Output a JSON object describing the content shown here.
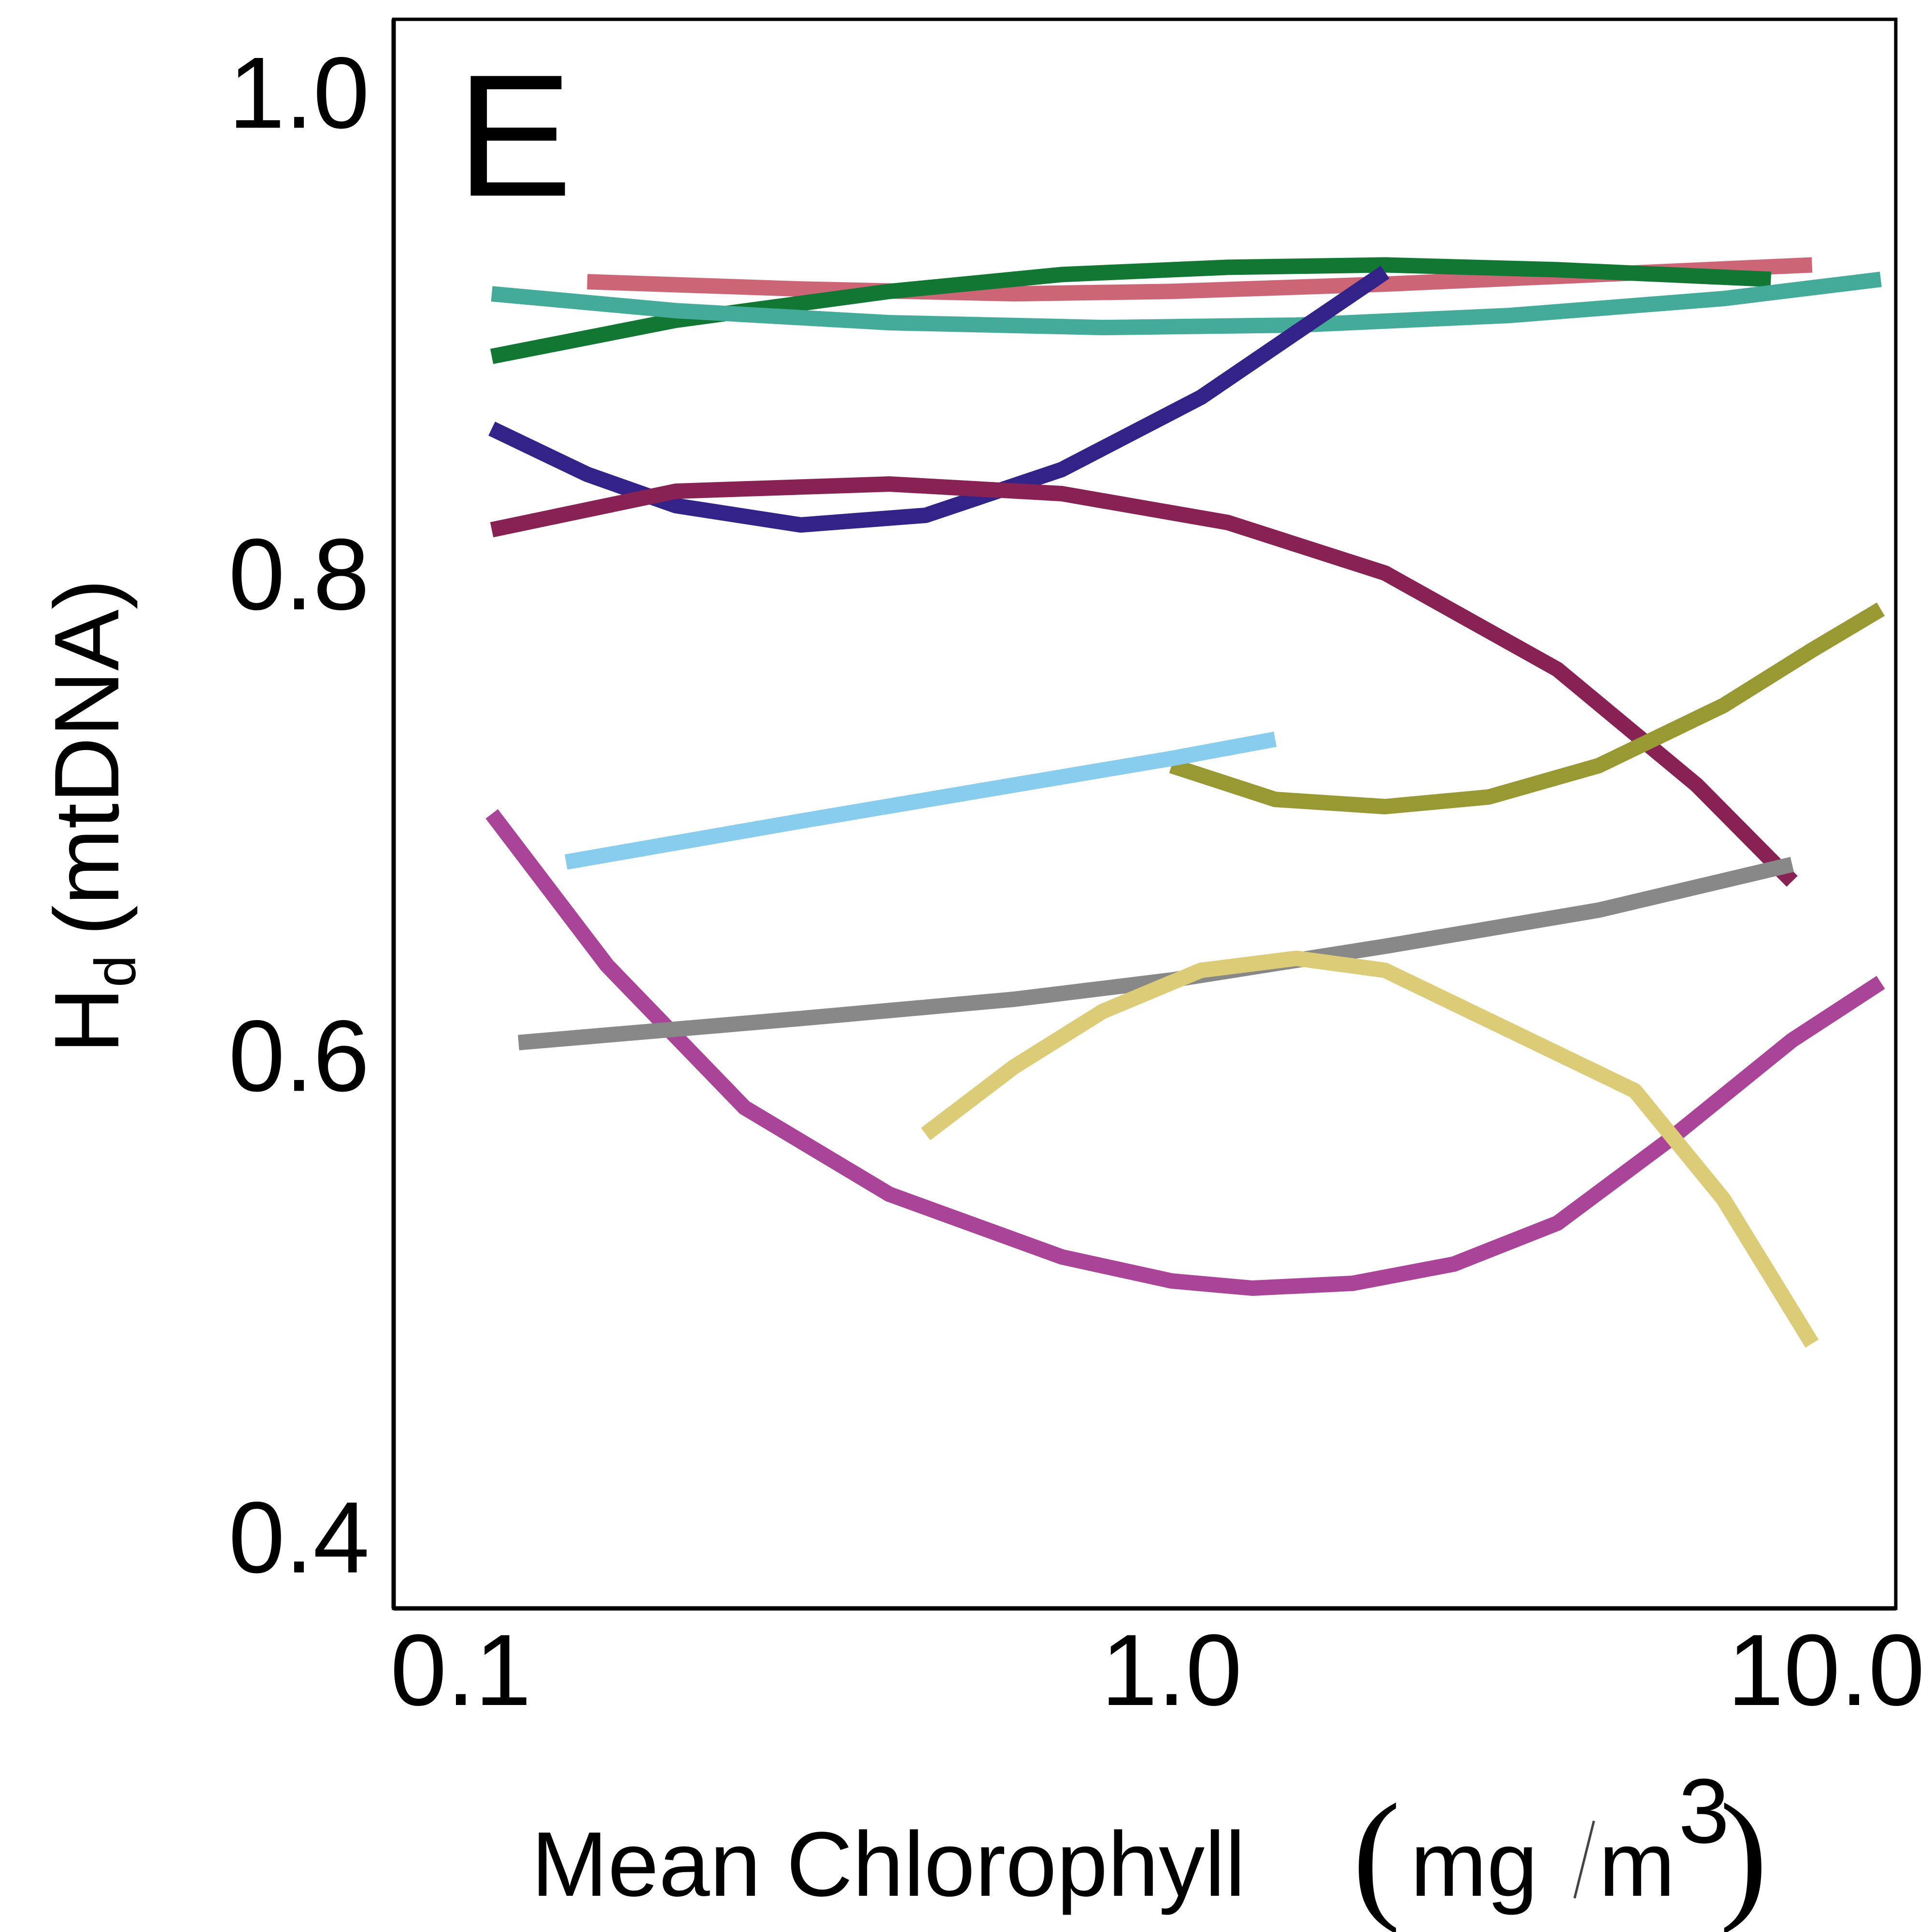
{
  "chart_data": {
    "type": "line",
    "panel_label": "E",
    "xlabel_main": "Mean Chlorophyll",
    "xlabel_units": "mg",
    "xlabel_units2": "m",
    "xlabel_exp": "3",
    "ylabel_main": "H",
    "ylabel_sub": "d",
    "ylabel_rest": "(mtDNA)",
    "x_scale": "log",
    "xlim": [
      0.08,
      10.5
    ],
    "ylim": [
      0.37,
      1.03
    ],
    "x_ticks": [
      0.1,
      1.0,
      10.0
    ],
    "x_tick_labels": [
      "0.1",
      "1.0",
      "10.0"
    ],
    "y_ticks": [
      0.4,
      0.6,
      0.8,
      1.0
    ],
    "y_tick_labels": [
      "0.4",
      "0.6",
      "0.8",
      "1.0"
    ],
    "grid": false,
    "legend": "none",
    "series": [
      {
        "color": "#CC6677",
        "x": [
          0.15,
          0.3,
          0.6,
          1.0,
          2.0,
          4.0,
          8.0
        ],
        "y": [
          0.921,
          0.918,
          0.916,
          0.917,
          0.92,
          0.924,
          0.928
        ]
      },
      {
        "color": "#117733",
        "x": [
          0.11,
          0.2,
          0.4,
          0.7,
          1.2,
          2.0,
          3.5,
          7.0
        ],
        "y": [
          0.89,
          0.905,
          0.917,
          0.924,
          0.927,
          0.928,
          0.926,
          0.922
        ]
      },
      {
        "color": "#44AA99",
        "x": [
          0.11,
          0.2,
          0.4,
          0.8,
          1.5,
          3.0,
          6.0,
          10.0
        ],
        "y": [
          0.916,
          0.909,
          0.904,
          0.902,
          0.903,
          0.907,
          0.914,
          0.922
        ]
      },
      {
        "color": "#332288",
        "x": [
          0.11,
          0.15,
          0.2,
          0.3,
          0.45,
          0.7,
          1.1,
          1.5,
          2.0
        ],
        "y": [
          0.86,
          0.841,
          0.828,
          0.82,
          0.824,
          0.843,
          0.873,
          0.9,
          0.925
        ]
      },
      {
        "color": "#882255",
        "x": [
          0.11,
          0.2,
          0.4,
          0.7,
          1.2,
          2.0,
          3.5,
          5.5,
          7.5
        ],
        "y": [
          0.818,
          0.834,
          0.837,
          0.833,
          0.821,
          0.8,
          0.76,
          0.712,
          0.672
        ]
      },
      {
        "color": "#999933",
        "x": [
          1.0,
          1.4,
          2.0,
          2.8,
          4.0,
          6.0,
          8.0,
          10.0
        ],
        "y": [
          0.72,
          0.706,
          0.703,
          0.707,
          0.72,
          0.745,
          0.768,
          0.785
        ]
      },
      {
        "color": "#88CCEE",
        "x": [
          0.14,
          0.3,
          0.6,
          1.0,
          1.4
        ],
        "y": [
          0.68,
          0.697,
          0.712,
          0.723,
          0.731
        ]
      },
      {
        "color": "#AA4499",
        "x": [
          0.11,
          0.16,
          0.25,
          0.4,
          0.7,
          1.0,
          1.3,
          1.8,
          2.5,
          3.5,
          5.0,
          7.5,
          10.0
        ],
        "y": [
          0.7,
          0.637,
          0.578,
          0.542,
          0.516,
          0.506,
          0.503,
          0.505,
          0.513,
          0.53,
          0.564,
          0.606,
          0.63
        ]
      },
      {
        "color": "#888888",
        "x": [
          0.12,
          0.3,
          0.6,
          1.0,
          2.0,
          4.0,
          7.5
        ],
        "y": [
          0.605,
          0.615,
          0.623,
          0.631,
          0.645,
          0.66,
          0.679
        ]
      },
      {
        "color": "#DDCC77",
        "x": [
          0.45,
          0.6,
          0.8,
          1.1,
          1.5,
          2.0,
          3.0,
          4.5,
          6.0,
          8.0
        ],
        "y": [
          0.567,
          0.595,
          0.618,
          0.635,
          0.64,
          0.635,
          0.61,
          0.585,
          0.54,
          0.48
        ]
      }
    ]
  }
}
